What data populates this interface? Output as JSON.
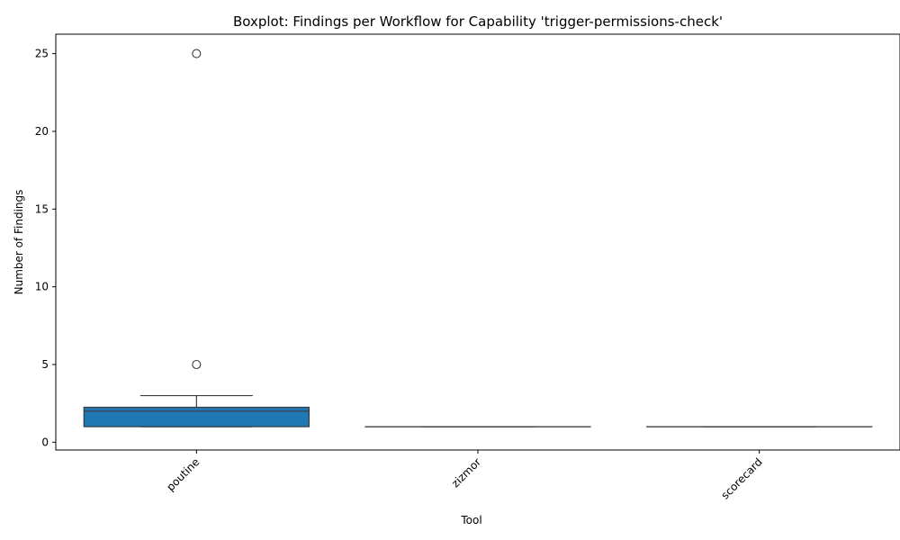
{
  "chart_data": {
    "type": "boxplot",
    "title": "Boxplot: Findings per Workflow for Capability 'trigger-permissions-check'",
    "xlabel": "Tool",
    "ylabel": "Number of Findings",
    "ylim": [
      -0.5,
      26.25
    ],
    "yticks": [
      0,
      5,
      10,
      15,
      20,
      25
    ],
    "grid": false,
    "box_color": "#1f77b4",
    "line_color": "#3d3d3d",
    "categories": [
      "poutine",
      "zizmor",
      "scorecard"
    ],
    "boxes": [
      {
        "category": "poutine",
        "whisker_low": 1,
        "q1": 1,
        "median": 2,
        "q3": 2.25,
        "whisker_high": 3,
        "outliers": [
          5,
          25
        ]
      },
      {
        "category": "zizmor",
        "whisker_low": 1,
        "q1": 1,
        "median": 1,
        "q3": 1,
        "whisker_high": 1,
        "outliers": []
      },
      {
        "category": "scorecard",
        "whisker_low": 1,
        "q1": 1,
        "median": 1,
        "q3": 1,
        "whisker_high": 1,
        "outliers": []
      }
    ]
  }
}
